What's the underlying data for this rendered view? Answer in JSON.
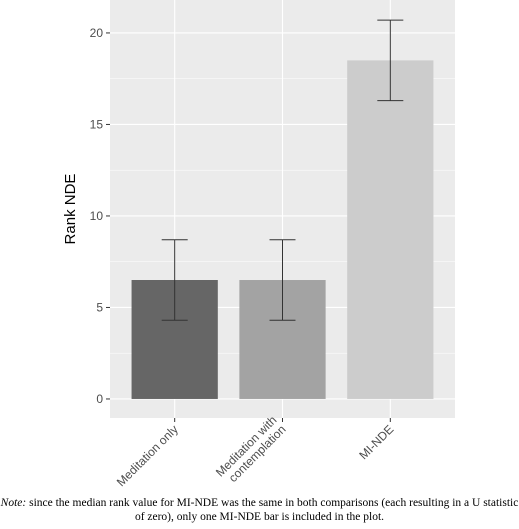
{
  "chart_data": {
    "type": "bar",
    "ylabel": "Rank NDE",
    "categories": [
      "Meditation only",
      "Meditation with\ncontemplation",
      "MI-NDE"
    ],
    "values": [
      6.5,
      6.5,
      18.5
    ],
    "errors": [
      2.2,
      2.2,
      2.2
    ],
    "colors": [
      "#666666",
      "#a3a3a3",
      "#cccccc"
    ],
    "ylim": [
      -1.04,
      21.8
    ],
    "yticks": [
      0,
      5,
      10,
      15,
      20
    ],
    "grid": true
  },
  "note": {
    "label": "Note:",
    "text": "since the median rank value for MI-NDE was the same in both comparisons (each resulting in a U statistic of zero), only one MI-NDE bar is included in the plot."
  }
}
